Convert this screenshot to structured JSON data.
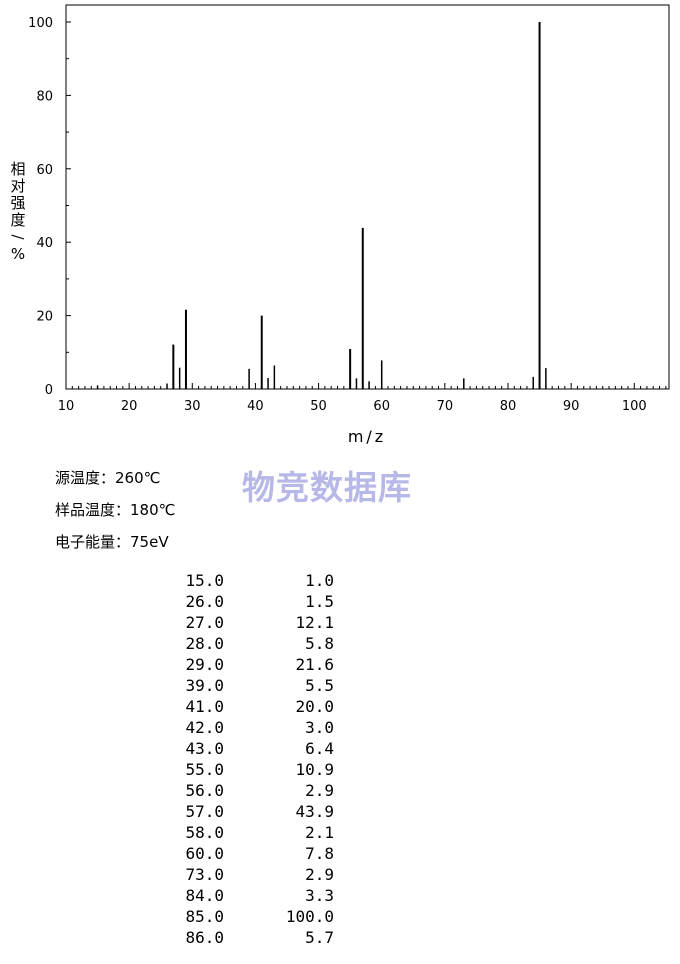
{
  "chart_data": {
    "type": "bar",
    "xlabel": "m/z",
    "ylabel": "相对强度/%",
    "xlim": [
      10,
      105
    ],
    "ylim": [
      0,
      100
    ],
    "xticks": [
      10,
      20,
      30,
      40,
      50,
      60,
      70,
      80,
      90,
      100
    ],
    "yticks": [
      0,
      20,
      40,
      60,
      80,
      100
    ],
    "grid": false,
    "x": [
      15,
      26,
      27,
      28,
      29,
      39,
      41,
      42,
      43,
      55,
      56,
      57,
      58,
      60,
      73,
      84,
      85,
      86
    ],
    "values": [
      1.0,
      1.5,
      12.1,
      5.8,
      21.6,
      5.5,
      20.0,
      3.0,
      6.4,
      10.9,
      2.9,
      43.9,
      2.1,
      7.8,
      2.9,
      3.3,
      100.0,
      5.7
    ]
  },
  "info": {
    "source_temp": "源温度：260℃",
    "sample_temp": "样品温度：180℃",
    "electron_energy": "电子能量：75eV"
  },
  "watermark": "物竞数据库",
  "peak_table": [
    [
      "15.0",
      "1.0"
    ],
    [
      "26.0",
      "1.5"
    ],
    [
      "27.0",
      "12.1"
    ],
    [
      "28.0",
      "5.8"
    ],
    [
      "29.0",
      "21.6"
    ],
    [
      "39.0",
      "5.5"
    ],
    [
      "41.0",
      "20.0"
    ],
    [
      "42.0",
      "3.0"
    ],
    [
      "43.0",
      "6.4"
    ],
    [
      "55.0",
      "10.9"
    ],
    [
      "56.0",
      "2.9"
    ],
    [
      "57.0",
      "43.9"
    ],
    [
      "58.0",
      "2.1"
    ],
    [
      "60.0",
      "7.8"
    ],
    [
      "73.0",
      "2.9"
    ],
    [
      "84.0",
      "3.3"
    ],
    [
      "85.0",
      "100.0"
    ],
    [
      "86.0",
      "5.7"
    ]
  ]
}
